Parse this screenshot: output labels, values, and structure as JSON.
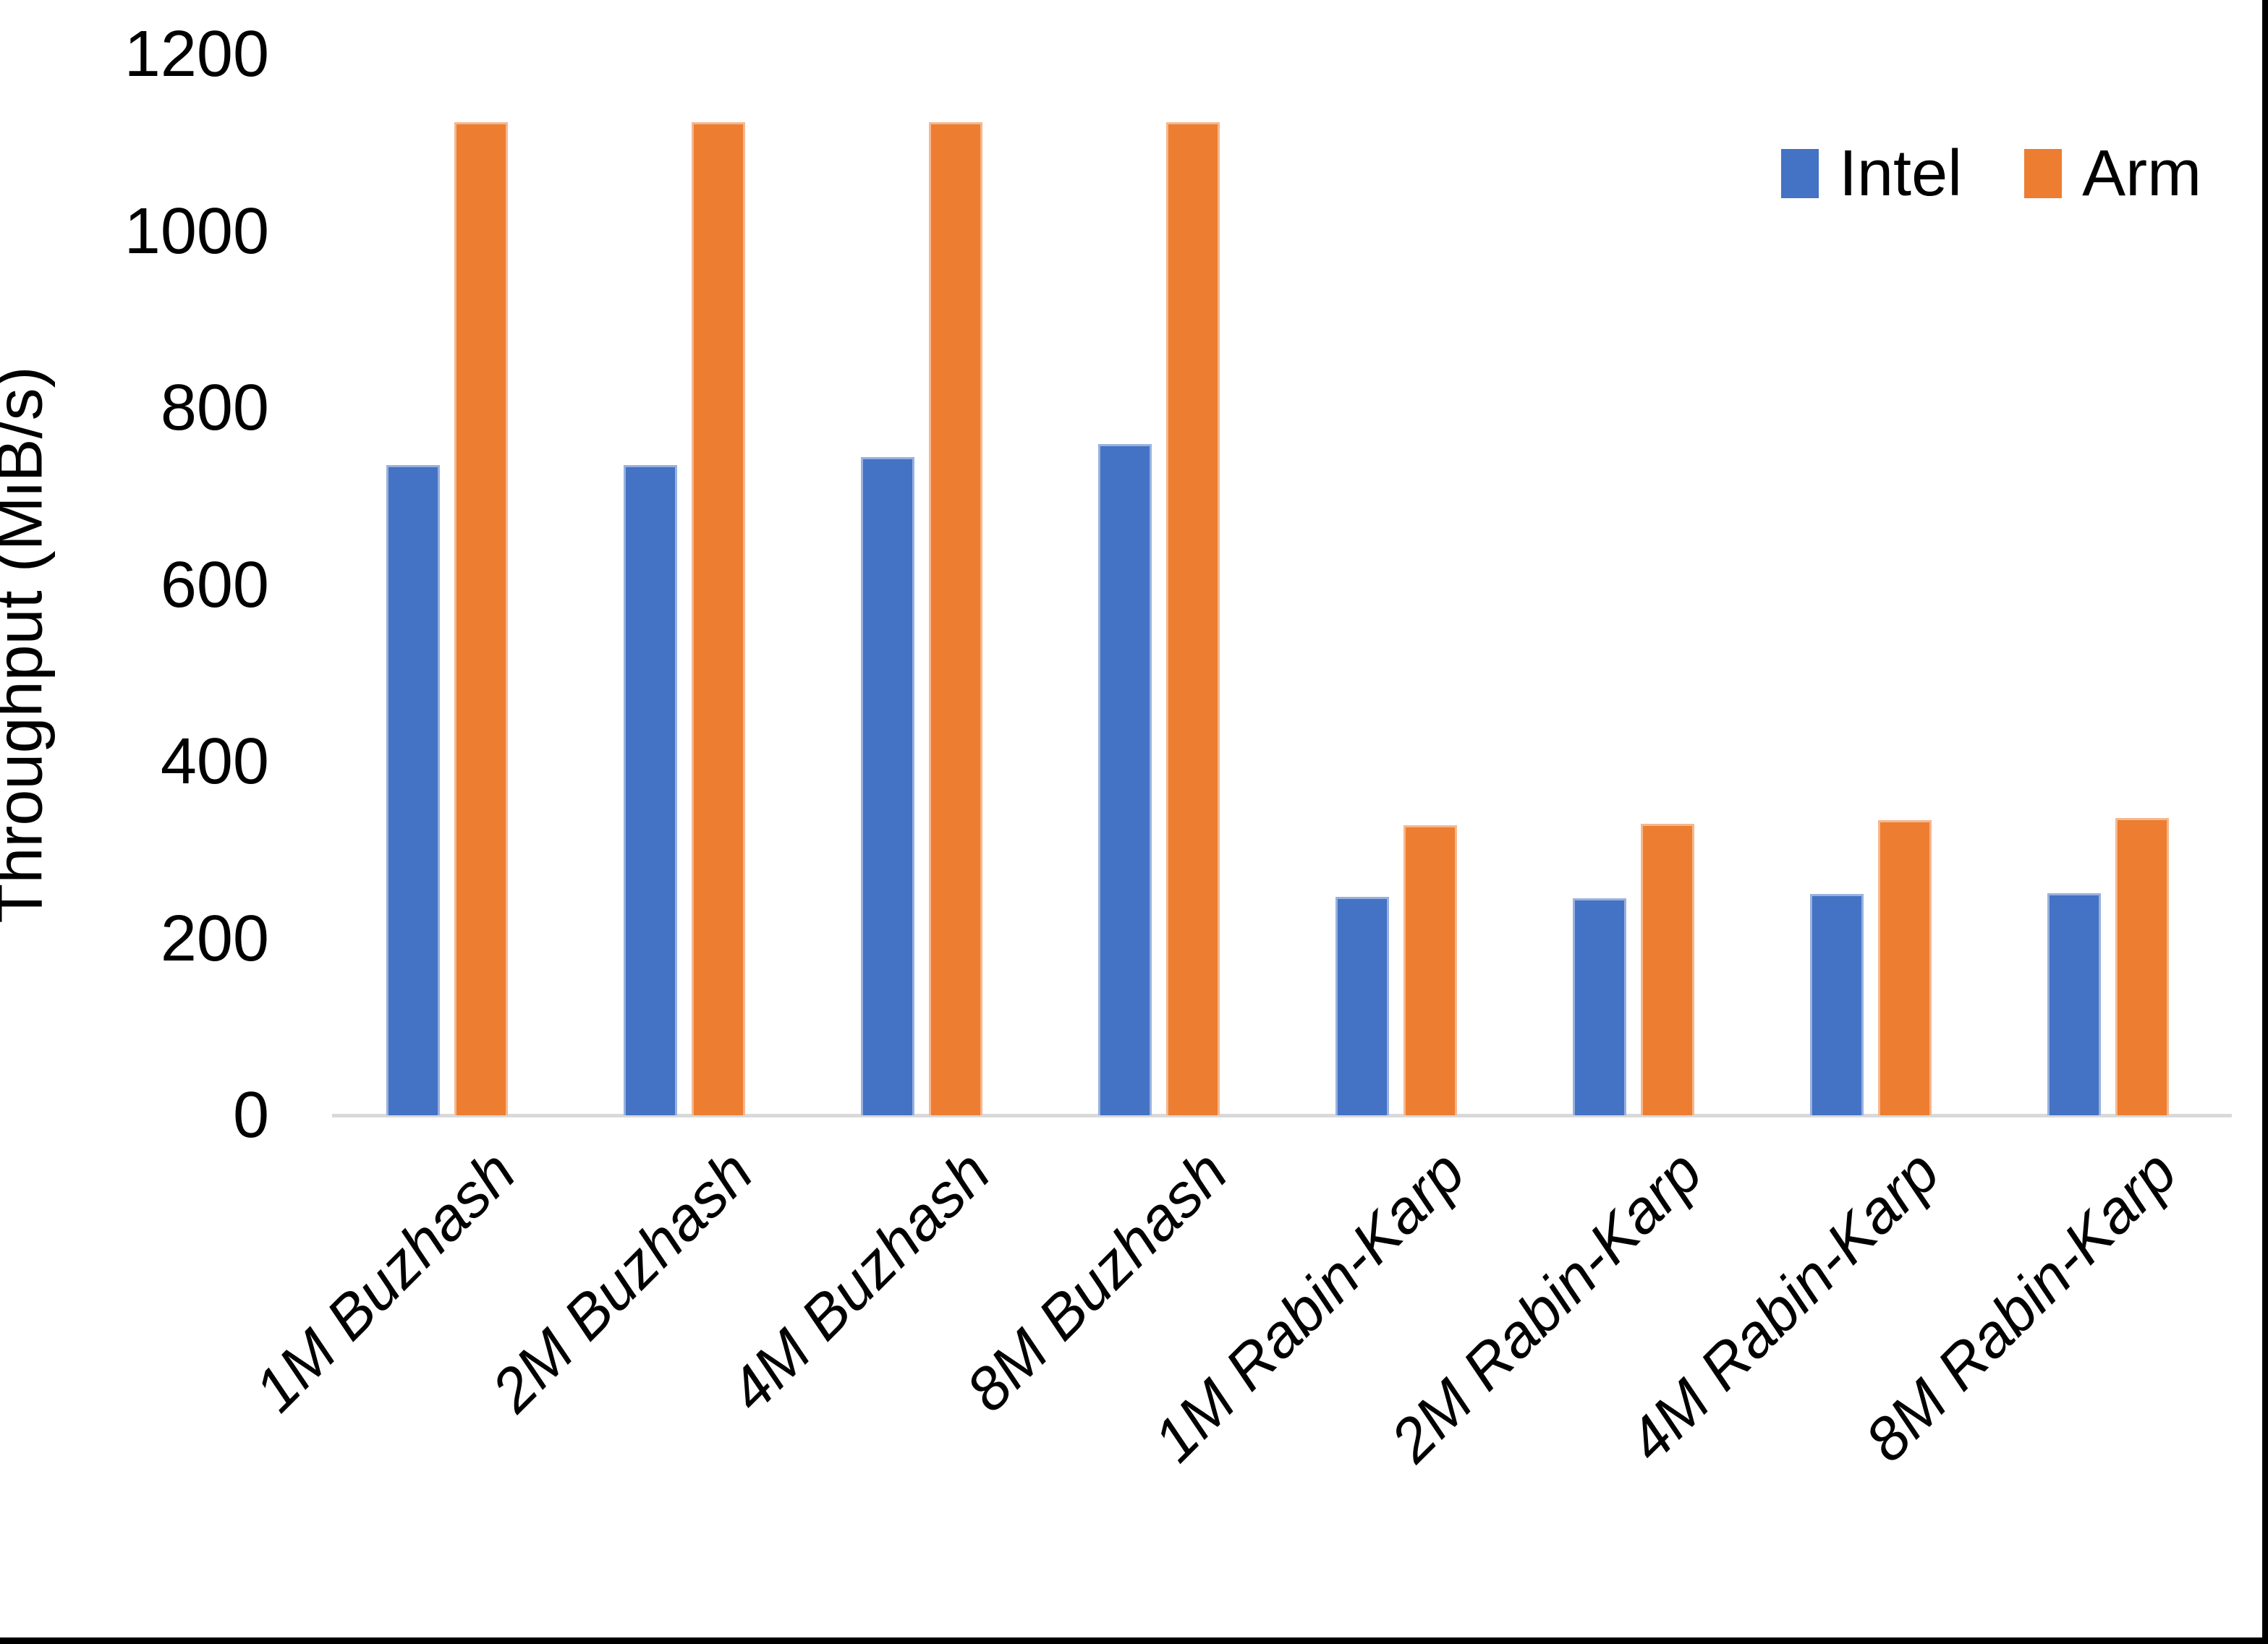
{
  "chart_data": {
    "type": "bar",
    "title": "",
    "xlabel": "",
    "ylabel": "Throughput (MiB/s)",
    "categories": [
      "1M Buzhash",
      "2M Buzhash",
      "4M Buzhash",
      "8M Buzhash",
      "1M Rabin-Karp",
      "2M Rabin-Karp",
      "4M Rabin-Karp",
      "8M Rabin-Karp"
    ],
    "series": [
      {
        "name": "Intel",
        "color": "#4472C4",
        "values": [
          735,
          735,
          744,
          759,
          247,
          245,
          250,
          251
        ]
      },
      {
        "name": "Arm",
        "color": "#ED7D31",
        "values": [
          1123,
          1123,
          1123,
          1123,
          328,
          330,
          334,
          336
        ]
      }
    ],
    "ylim": [
      0,
      1200
    ],
    "yticks": [
      0,
      200,
      400,
      600,
      800,
      1000,
      1200
    ],
    "grid": false,
    "legend_position": "top-right"
  },
  "axis": {
    "line_color": "#D9D9D9"
  },
  "borders": {
    "bottom_color": "#000000",
    "right_color": "#000000"
  }
}
